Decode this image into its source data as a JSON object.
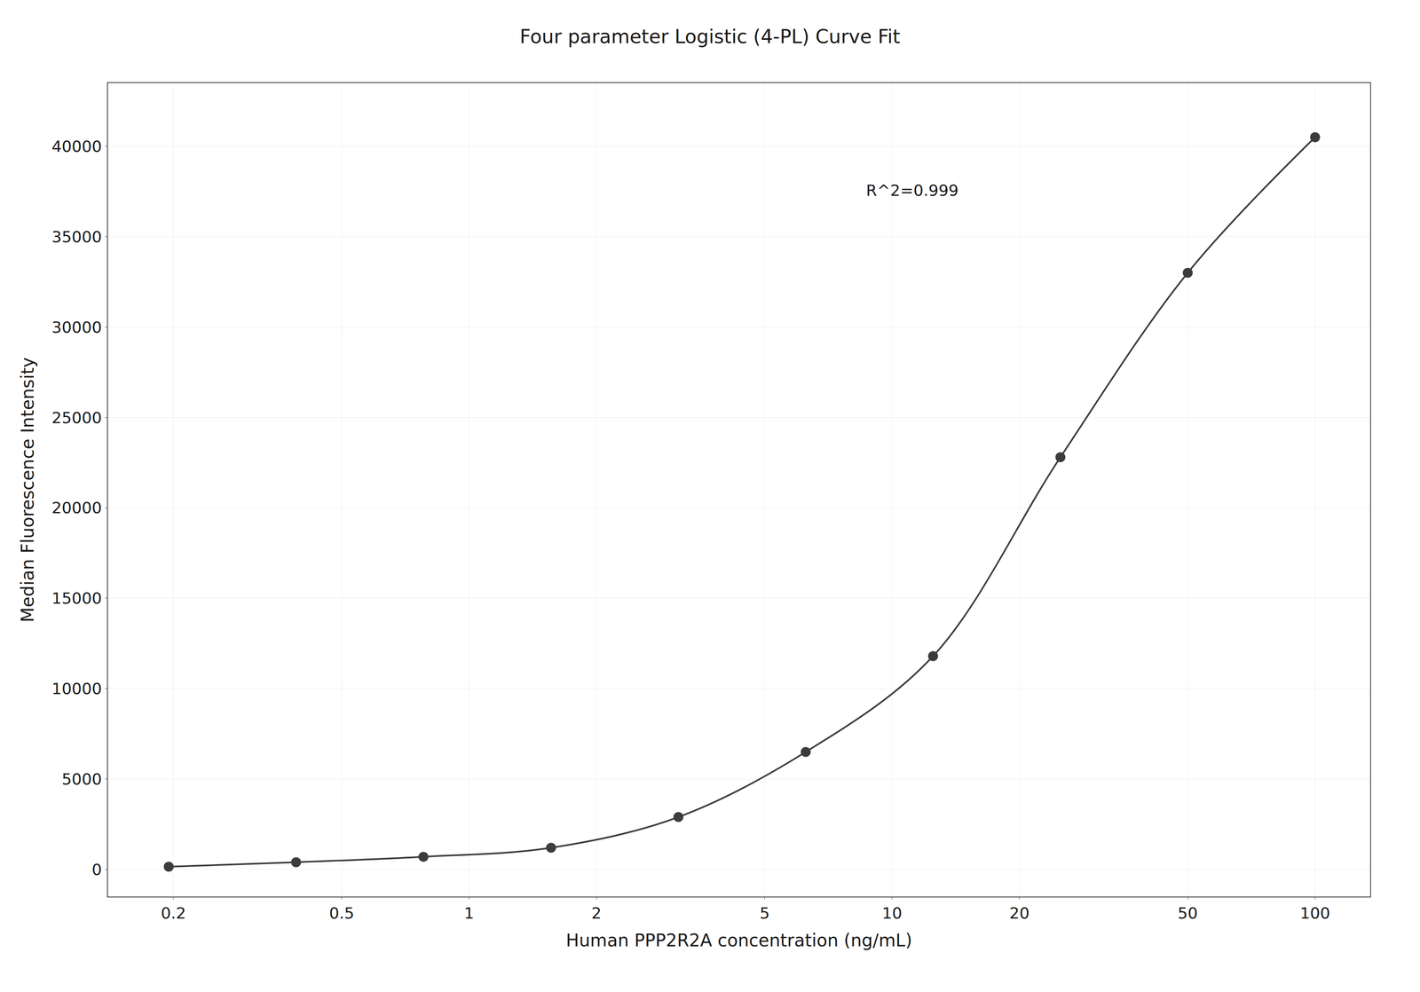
{
  "chart_data": {
    "type": "line",
    "title": "Four parameter Logistic (4-PL) Curve Fit",
    "xlabel": "Human PPP2R2A concentration (ng/mL)",
    "ylabel": "Median Fluorescence Intensity",
    "annotation": "R^2=0.999",
    "x": [
      0.195,
      0.39,
      0.78,
      1.5625,
      3.125,
      6.25,
      12.5,
      25,
      50,
      100
    ],
    "values": [
      150,
      400,
      700,
      1200,
      2900,
      6500,
      11800,
      22800,
      33000,
      40500
    ],
    "color": "#3c3c3c",
    "marker": "o",
    "line_style": "solid",
    "log": "x",
    "grid": true,
    "xlim": [
      0.14,
      135
    ],
    "xticks": [
      0.2,
      0.5,
      1,
      2,
      5,
      10,
      20,
      50,
      100
    ],
    "ylim": [
      -1500,
      43500
    ],
    "yticks": [
      0,
      5000,
      10000,
      15000,
      20000,
      25000,
      30000,
      35000,
      40000
    ]
  }
}
